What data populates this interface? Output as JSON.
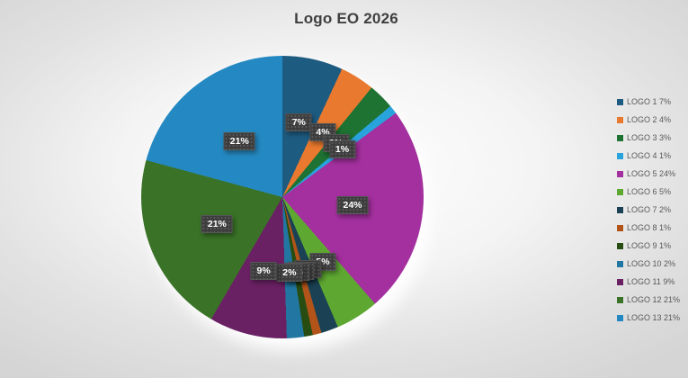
{
  "chart_data": {
    "type": "pie",
    "title": "Logo EO 2026",
    "legend_position": "right",
    "start_angle_deg": 0,
    "direction": "clockwise",
    "categories": [
      "LOGO 1",
      "LOGO 2",
      "LOGO 3",
      "LOGO 4",
      "LOGO 5",
      "LOGO 6",
      "LOGO 7",
      "LOGO 8",
      "LOGO 9",
      "LOGO 10",
      "LOGO 11",
      "LOGO 12",
      "LOGO 13"
    ],
    "values": [
      7,
      4,
      3,
      1,
      24,
      5,
      2,
      1,
      1,
      2,
      9,
      21,
      21
    ],
    "percent_labels": [
      "7%",
      "4%",
      "3%",
      "1%",
      "24%",
      "5%",
      "2%",
      "1%",
      "1%",
      "2%",
      "9%",
      "21%",
      "21%"
    ],
    "legend_labels": [
      "LOGO 1 7%",
      "LOGO 2 4%",
      "LOGO 3 3%",
      "LOGO 4 1%",
      "LOGO 5 24%",
      "LOGO 6 5%",
      "LOGO 7 2%",
      "LOGO 8 1%",
      "LOGO 9 1%",
      "LOGO 10 2%",
      "LOGO 11 9%",
      "LOGO 12 21%",
      "LOGO 13 21%"
    ],
    "colors": [
      "#1E5B80",
      "#E8792E",
      "#1E7232",
      "#29A3DB",
      "#A3309E",
      "#5EA832",
      "#1B4254",
      "#B25419",
      "#274D13",
      "#2177A2",
      "#6A2164",
      "#3A7327",
      "#2489C2"
    ]
  },
  "styles": {
    "title_color": "#3F3F3F",
    "label_background": "#3D3D3D",
    "label_text_color": "#FFFFFF",
    "legend_text_color": "#595959"
  }
}
